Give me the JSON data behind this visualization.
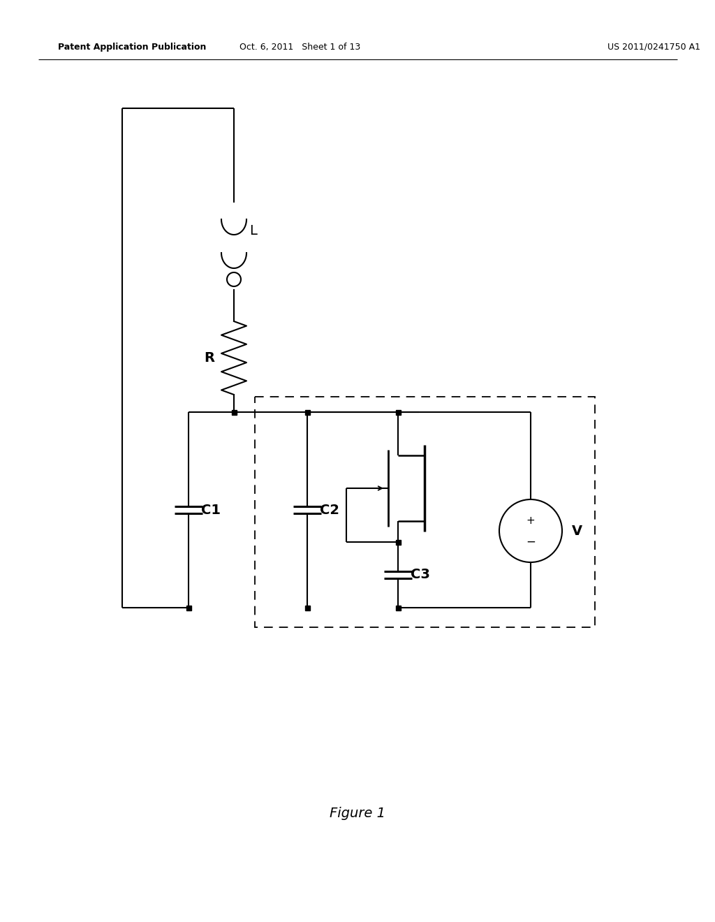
{
  "bg_color": "#ffffff",
  "line_color": "#000000",
  "header_left": "Patent Application Publication",
  "header_mid": "Oct. 6, 2011   Sheet 1 of 13",
  "header_right": "US 2011/0241750 A1",
  "figure_label": "Figure 1",
  "header_fontsize": 9,
  "label_fontsize": 14,
  "fig_label_fontsize": 14,
  "lw_main": 1.5,
  "lw_component": 2.0,
  "dot_size": 0.07
}
